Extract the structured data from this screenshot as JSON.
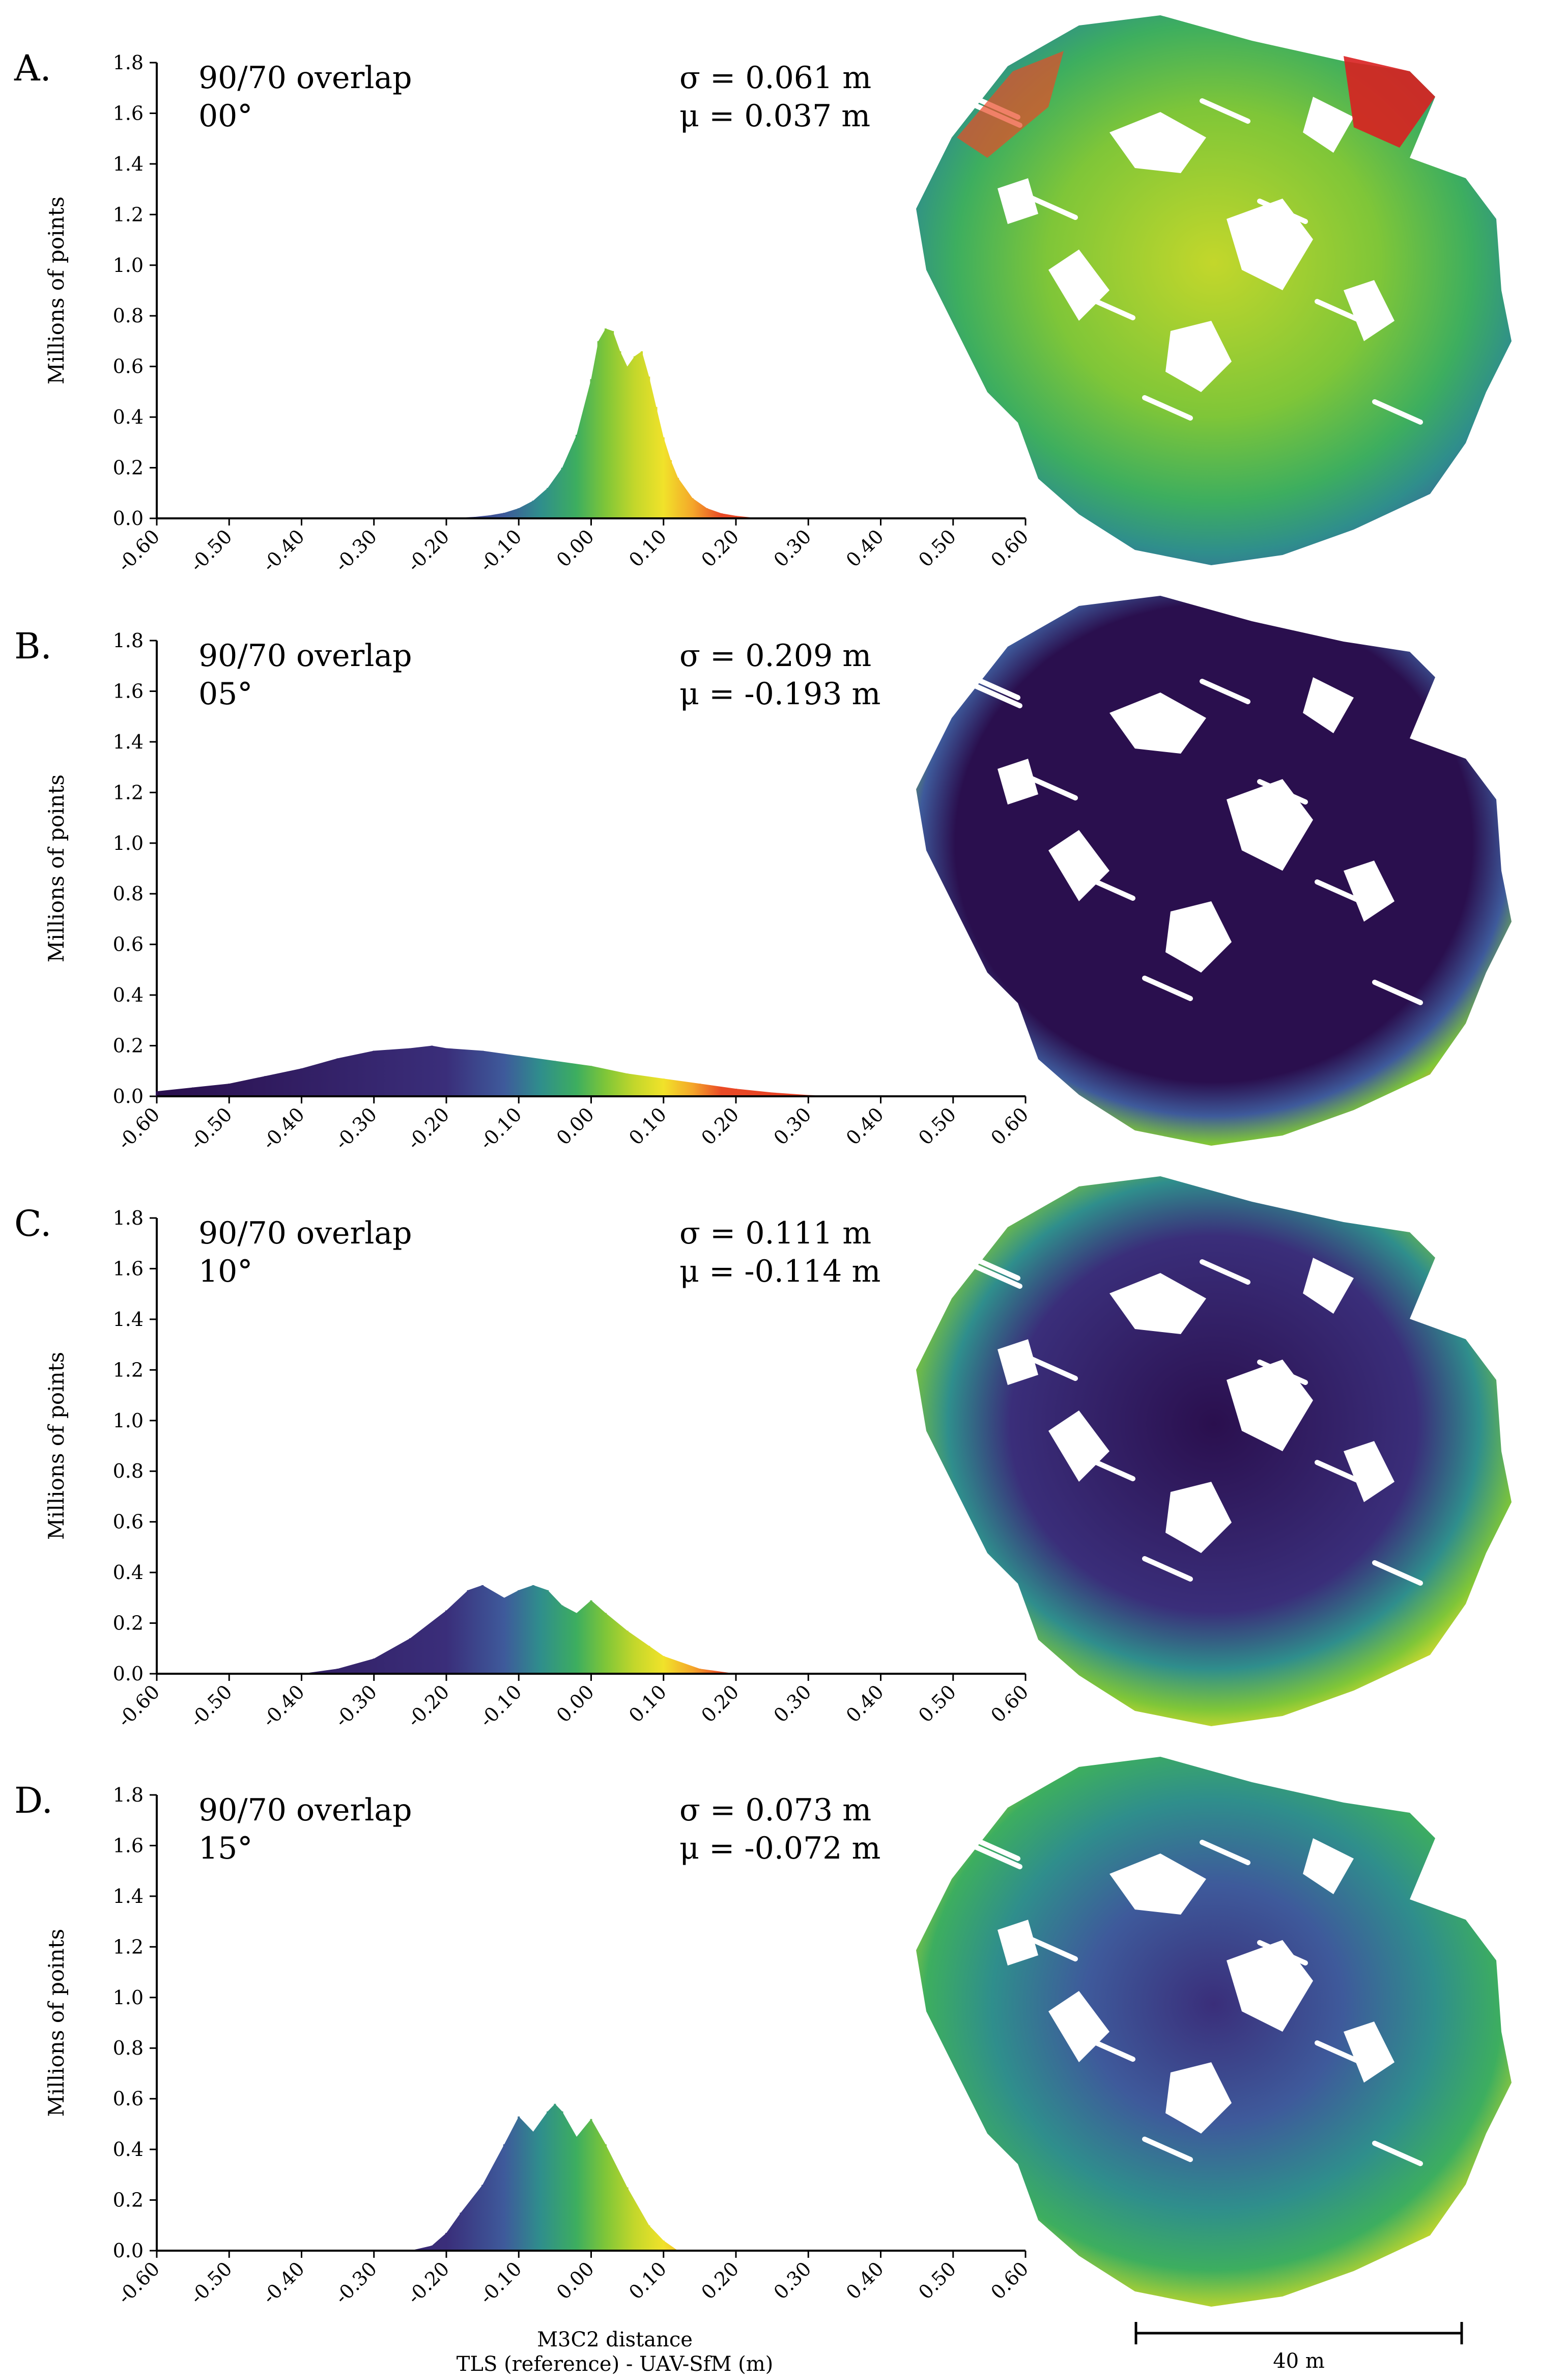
{
  "colors": {
    "colormap": [
      "#2a0f4e",
      "#3a2e7a",
      "#3e5a9b",
      "#2f8e8c",
      "#3dae5f",
      "#7fc638",
      "#c3d72b",
      "#f1e22a",
      "#f4a72a",
      "#ea4a26",
      "#d92020"
    ],
    "map_base": "#2a0f4e",
    "axis": "#000000"
  },
  "chart_data": [
    {
      "type": "bar",
      "panel": "A.",
      "title_line1": "90/70 overlap",
      "title_line2": "00°",
      "sigma_text": "σ = 0.061 m",
      "mu_text": "μ = 0.037 m",
      "ylabel": "Millions of points",
      "xlabel": "M3C2 distance",
      "xlabel2": "TLS (reference) - UAV-SfM (m)",
      "xlim": [
        -0.6,
        0.6
      ],
      "ylim": [
        0.0,
        1.8
      ],
      "xticks": [
        "-0.60",
        "-0.50",
        "-0.40",
        "-0.30",
        "-0.20",
        "-0.10",
        "0.00",
        "0.10",
        "0.20",
        "0.30",
        "0.40",
        "0.50",
        "0.60"
      ],
      "yticks": [
        "0.0",
        "0.2",
        "0.4",
        "0.6",
        "0.8",
        "1.0",
        "1.2",
        "1.4",
        "1.6",
        "1.8"
      ],
      "bin_centers": [
        -0.2,
        -0.18,
        -0.16,
        -0.14,
        -0.12,
        -0.1,
        -0.08,
        -0.06,
        -0.04,
        -0.02,
        0.0,
        0.01,
        0.02,
        0.03,
        0.04,
        0.05,
        0.06,
        0.07,
        0.08,
        0.09,
        0.1,
        0.11,
        0.12,
        0.14,
        0.16,
        0.18,
        0.2,
        0.22,
        0.25
      ],
      "values": [
        0.0,
        0.003,
        0.006,
        0.012,
        0.022,
        0.04,
        0.07,
        0.12,
        0.2,
        0.33,
        0.55,
        0.7,
        0.75,
        0.74,
        0.66,
        0.6,
        0.64,
        0.66,
        0.56,
        0.44,
        0.32,
        0.23,
        0.16,
        0.08,
        0.04,
        0.02,
        0.01,
        0.004,
        0.0
      ]
    },
    {
      "type": "bar",
      "panel": "B.",
      "title_line1": "90/70 overlap",
      "title_line2": "05°",
      "sigma_text": "σ = 0.209 m",
      "mu_text": "μ = -0.193 m",
      "ylabel": "Millions of points",
      "xlim": [
        -0.6,
        0.6
      ],
      "ylim": [
        0.0,
        1.8
      ],
      "xticks": [
        "-0.60",
        "-0.50",
        "-0.40",
        "-0.30",
        "-0.20",
        "-0.10",
        "0.00",
        "0.10",
        "0.20",
        "0.30",
        "0.40",
        "0.50",
        "0.60"
      ],
      "yticks": [
        "0.0",
        "0.2",
        "0.4",
        "0.6",
        "0.8",
        "1.0",
        "1.2",
        "1.4",
        "1.6",
        "1.8"
      ],
      "bin_centers": [
        -0.6,
        -0.55,
        -0.5,
        -0.45,
        -0.4,
        -0.35,
        -0.3,
        -0.25,
        -0.22,
        -0.2,
        -0.15,
        -0.1,
        -0.05,
        0.0,
        0.05,
        0.1,
        0.15,
        0.2,
        0.25,
        0.3,
        0.35
      ],
      "values": [
        0.02,
        0.035,
        0.05,
        0.08,
        0.11,
        0.15,
        0.18,
        0.19,
        0.2,
        0.19,
        0.18,
        0.16,
        0.14,
        0.12,
        0.09,
        0.07,
        0.05,
        0.03,
        0.015,
        0.005,
        0.0
      ]
    },
    {
      "type": "bar",
      "panel": "C.",
      "title_line1": "90/70 overlap",
      "title_line2": "10°",
      "sigma_text": "σ = 0.111 m",
      "mu_text": "μ = -0.114 m",
      "ylabel": "Millions of points",
      "xlim": [
        -0.6,
        0.6
      ],
      "ylim": [
        0.0,
        1.8
      ],
      "xticks": [
        "-0.60",
        "-0.50",
        "-0.40",
        "-0.30",
        "-0.20",
        "-0.10",
        "0.00",
        "0.10",
        "0.20",
        "0.30",
        "0.40",
        "0.50",
        "0.60"
      ],
      "yticks": [
        "0.0",
        "0.2",
        "0.4",
        "0.6",
        "0.8",
        "1.0",
        "1.2",
        "1.4",
        "1.6",
        "1.8"
      ],
      "bin_centers": [
        -0.4,
        -0.35,
        -0.3,
        -0.25,
        -0.2,
        -0.17,
        -0.15,
        -0.12,
        -0.1,
        -0.08,
        -0.06,
        -0.04,
        -0.02,
        0.0,
        0.02,
        0.05,
        0.08,
        0.1,
        0.15,
        0.2
      ],
      "values": [
        0.0,
        0.02,
        0.06,
        0.14,
        0.25,
        0.33,
        0.35,
        0.3,
        0.33,
        0.35,
        0.33,
        0.27,
        0.24,
        0.29,
        0.24,
        0.17,
        0.11,
        0.07,
        0.02,
        0.0
      ]
    },
    {
      "type": "bar",
      "panel": "D.",
      "title_line1": "90/70 overlap",
      "title_line2": "15°",
      "sigma_text": "σ = 0.073 m",
      "mu_text": "μ = -0.072 m",
      "ylabel": "Millions of points",
      "xlim": [
        -0.6,
        0.6
      ],
      "ylim": [
        0.0,
        1.8
      ],
      "xticks": [
        "-0.60",
        "-0.50",
        "-0.40",
        "-0.30",
        "-0.20",
        "-0.10",
        "0.00",
        "0.10",
        "0.20",
        "0.30",
        "0.40",
        "0.50",
        "0.60"
      ],
      "yticks": [
        "0.0",
        "0.2",
        "0.4",
        "0.6",
        "0.8",
        "1.0",
        "1.2",
        "1.4",
        "1.6",
        "1.8"
      ],
      "bin_centers": [
        -0.25,
        -0.22,
        -0.2,
        -0.18,
        -0.15,
        -0.12,
        -0.1,
        -0.08,
        -0.06,
        -0.05,
        -0.04,
        -0.02,
        0.0,
        0.02,
        0.05,
        0.08,
        0.1,
        0.12
      ],
      "values": [
        0.0,
        0.02,
        0.07,
        0.15,
        0.26,
        0.42,
        0.53,
        0.47,
        0.55,
        0.58,
        0.55,
        0.45,
        0.52,
        0.42,
        0.25,
        0.1,
        0.04,
        0.0
      ]
    }
  ],
  "scale_bar": {
    "label": "40 m"
  },
  "axis_caption": {
    "line1": "M3C2 distance",
    "line2": "TLS (reference) - UAV-SfM (m)"
  },
  "maps": [
    {
      "panel": "A.",
      "pattern": "mostly-green",
      "description_name": "map-a"
    },
    {
      "panel": "B.",
      "pattern": "mostly-purple",
      "description_name": "map-b"
    },
    {
      "panel": "C.",
      "pattern": "purple-with-edges",
      "description_name": "map-c"
    },
    {
      "panel": "D.",
      "pattern": "mixed",
      "description_name": "map-d"
    }
  ]
}
